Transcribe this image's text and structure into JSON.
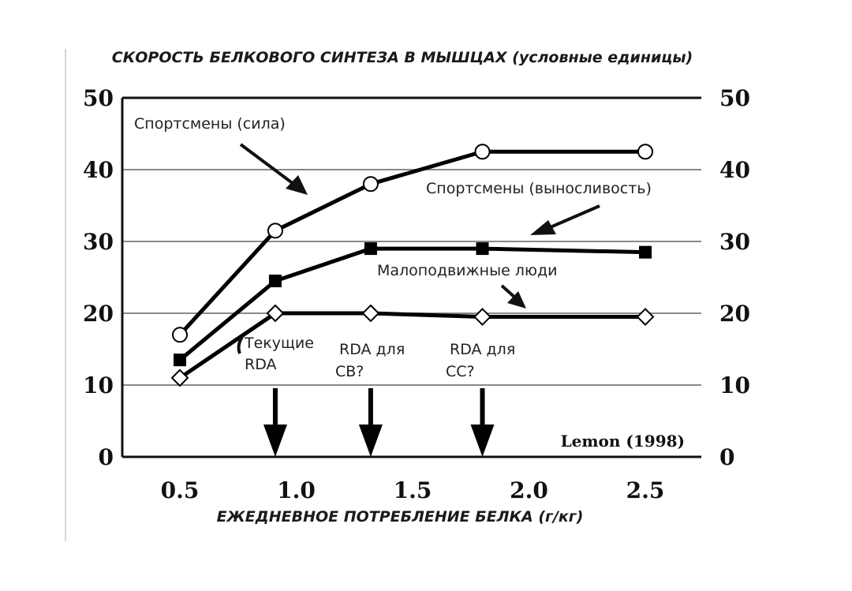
{
  "chart_data": {
    "type": "line",
    "title": "СКОРОСТЬ БЕЛКОВОГО СИНТЕЗА В МЫШЦАХ (условные единицы)",
    "xlabel": "ЕЖЕДНЕВНОЕ ПОТРЕБЛЕНИЕ БЕЛКА (г/кг)",
    "ylabel": "",
    "xlim": [
      0.25,
      2.75
    ],
    "ylim": [
      0,
      50
    ],
    "x_ticks": [
      "0.5",
      "1.0",
      "1.5",
      "2.0",
      "2.5"
    ],
    "y_ticks": [
      "0",
      "10",
      "20",
      "30",
      "40",
      "50"
    ],
    "grid": "horizontal",
    "series": [
      {
        "name": "Спортсмены (сила)",
        "marker": "circle",
        "x": [
          0.5,
          0.91,
          1.32,
          1.8,
          2.5
        ],
        "y": [
          17,
          31.5,
          38,
          42.5,
          42.5
        ]
      },
      {
        "name": "Спортсмены (выносливость)",
        "marker": "square",
        "x": [
          0.5,
          0.91,
          1.32,
          1.8,
          2.5
        ],
        "y": [
          13.5,
          24.5,
          29,
          29,
          28.5
        ]
      },
      {
        "name": "Малоподвижные люди",
        "marker": "diamond",
        "x": [
          0.5,
          0.91,
          1.32,
          1.8,
          2.5
        ],
        "y": [
          11,
          20,
          20,
          19.5,
          19.5
        ]
      }
    ],
    "markers": [
      {
        "label_lines": [
          "Текущие",
          "RDA"
        ],
        "x": 0.91
      },
      {
        "label_lines": [
          "RDA для",
          "СВ?"
        ],
        "x": 1.32
      },
      {
        "label_lines": [
          "RDA для",
          "СС?"
        ],
        "x": 1.8
      }
    ],
    "source": "Lemon (1998)"
  }
}
